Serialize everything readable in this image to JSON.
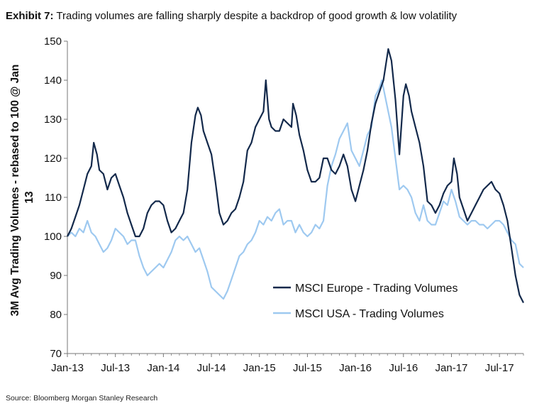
{
  "exhibit": {
    "label": "Exhibit 7:",
    "text": "Trading volumes are falling sharply despite a backdrop of good growth & low volatility"
  },
  "source": "Source: Bloomberg Morgan Stanley Research",
  "colors": {
    "europe": "#13294b",
    "usa": "#9ec9f0",
    "axis": "#777777"
  },
  "chart_data": {
    "type": "line",
    "title": "",
    "xlabel": "",
    "ylabel_lines": [
      "3M Avg Trading Volumes - rebased to 100 @ Jan",
      "13"
    ],
    "ylim": [
      70,
      150
    ],
    "yticks": [
      70,
      80,
      90,
      100,
      110,
      120,
      130,
      140,
      150
    ],
    "xlim": [
      0,
      57
    ],
    "xtick_labels": [
      "Jan-13",
      "Jul-13",
      "Jan-14",
      "Jul-14",
      "Jan-15",
      "Jul-15",
      "Jan-16",
      "Jul-16",
      "Jan-17",
      "Jul-17"
    ],
    "xtick_positions": [
      0,
      6,
      12,
      18,
      24,
      30,
      36,
      42,
      48,
      54
    ],
    "grid": false,
    "legend": "center-right",
    "series": [
      {
        "name": "MSCI Europe - Trading Volumes",
        "points": [
          [
            0,
            100
          ],
          [
            0.5,
            102
          ],
          [
            1,
            105
          ],
          [
            1.5,
            108
          ],
          [
            2,
            112
          ],
          [
            2.5,
            116
          ],
          [
            3,
            118
          ],
          [
            3.3,
            124
          ],
          [
            3.7,
            121
          ],
          [
            4,
            117
          ],
          [
            4.5,
            116
          ],
          [
            5,
            112
          ],
          [
            5.5,
            115
          ],
          [
            6,
            116
          ],
          [
            6.5,
            113
          ],
          [
            7,
            110
          ],
          [
            7.5,
            106
          ],
          [
            8,
            103
          ],
          [
            8.5,
            100
          ],
          [
            9,
            100
          ],
          [
            9.5,
            102
          ],
          [
            10,
            106
          ],
          [
            10.5,
            108
          ],
          [
            11,
            109
          ],
          [
            11.5,
            109
          ],
          [
            12,
            108
          ],
          [
            12.5,
            104
          ],
          [
            13,
            101
          ],
          [
            13.5,
            102
          ],
          [
            14,
            104
          ],
          [
            14.5,
            106
          ],
          [
            15,
            112
          ],
          [
            15.5,
            124
          ],
          [
            16,
            131
          ],
          [
            16.3,
            133
          ],
          [
            16.7,
            131
          ],
          [
            17,
            127
          ],
          [
            17.5,
            124
          ],
          [
            18,
            121
          ],
          [
            18.5,
            114
          ],
          [
            19,
            106
          ],
          [
            19.5,
            103
          ],
          [
            20,
            104
          ],
          [
            20.5,
            106
          ],
          [
            21,
            107
          ],
          [
            21.5,
            110
          ],
          [
            22,
            114
          ],
          [
            22.5,
            122
          ],
          [
            23,
            124
          ],
          [
            23.5,
            128
          ],
          [
            24,
            130
          ],
          [
            24.5,
            132
          ],
          [
            24.8,
            140
          ],
          [
            25.2,
            130
          ],
          [
            25.5,
            128
          ],
          [
            26,
            127
          ],
          [
            26.5,
            127
          ],
          [
            27,
            130
          ],
          [
            27.5,
            129
          ],
          [
            28,
            128
          ],
          [
            28.2,
            134
          ],
          [
            28.6,
            131
          ],
          [
            29,
            126
          ],
          [
            29.5,
            122
          ],
          [
            30,
            117
          ],
          [
            30.5,
            114
          ],
          [
            31,
            114
          ],
          [
            31.5,
            115
          ],
          [
            32,
            120
          ],
          [
            32.5,
            120
          ],
          [
            33,
            117
          ],
          [
            33.5,
            116
          ],
          [
            34,
            118
          ],
          [
            34.5,
            121
          ],
          [
            35,
            118
          ],
          [
            35.5,
            112
          ],
          [
            36,
            109
          ],
          [
            36.5,
            113
          ],
          [
            37,
            117
          ],
          [
            37.5,
            122
          ],
          [
            38,
            129
          ],
          [
            38.5,
            134
          ],
          [
            39,
            137
          ],
          [
            39.5,
            140
          ],
          [
            39.8,
            144
          ],
          [
            40.1,
            148
          ],
          [
            40.5,
            145
          ],
          [
            41,
            135
          ],
          [
            41.5,
            121
          ],
          [
            42,
            136
          ],
          [
            42.3,
            139
          ],
          [
            42.7,
            136
          ],
          [
            43,
            132
          ],
          [
            43.5,
            128
          ],
          [
            44,
            124
          ],
          [
            44.5,
            118
          ],
          [
            45,
            109
          ],
          [
            45.5,
            108
          ],
          [
            46,
            106
          ],
          [
            46.5,
            108
          ],
          [
            47,
            111
          ],
          [
            47.5,
            113
          ],
          [
            48,
            114
          ],
          [
            48.3,
            120
          ],
          [
            48.7,
            116
          ],
          [
            49,
            110
          ],
          [
            49.5,
            107
          ],
          [
            50,
            104
          ],
          [
            50.5,
            106
          ],
          [
            51,
            108
          ],
          [
            51.5,
            110
          ],
          [
            52,
            112
          ],
          [
            52.5,
            113
          ],
          [
            53,
            114
          ],
          [
            53.5,
            112
          ],
          [
            54,
            111
          ],
          [
            54.5,
            108
          ],
          [
            55,
            104
          ],
          [
            55.5,
            97
          ],
          [
            56,
            90
          ],
          [
            56.5,
            85
          ],
          [
            57,
            83
          ]
        ]
      },
      {
        "name": "MSCI USA - Trading Volumes",
        "points": [
          [
            0,
            100
          ],
          [
            0.5,
            101
          ],
          [
            1,
            100
          ],
          [
            1.5,
            102
          ],
          [
            2,
            101
          ],
          [
            2.5,
            104
          ],
          [
            3,
            101
          ],
          [
            3.5,
            100
          ],
          [
            4,
            98
          ],
          [
            4.5,
            96
          ],
          [
            5,
            97
          ],
          [
            5.5,
            99
          ],
          [
            6,
            102
          ],
          [
            6.5,
            101
          ],
          [
            7,
            100
          ],
          [
            7.5,
            98
          ],
          [
            8,
            99
          ],
          [
            8.5,
            99
          ],
          [
            9,
            95
          ],
          [
            9.5,
            92
          ],
          [
            10,
            90
          ],
          [
            10.5,
            91
          ],
          [
            11,
            92
          ],
          [
            11.5,
            93
          ],
          [
            12,
            92
          ],
          [
            12.5,
            94
          ],
          [
            13,
            96
          ],
          [
            13.5,
            99
          ],
          [
            14,
            100
          ],
          [
            14.5,
            99
          ],
          [
            15,
            100
          ],
          [
            15.5,
            98
          ],
          [
            16,
            96
          ],
          [
            16.5,
            97
          ],
          [
            17,
            94
          ],
          [
            17.5,
            91
          ],
          [
            18,
            87
          ],
          [
            18.5,
            86
          ],
          [
            19,
            85
          ],
          [
            19.5,
            84
          ],
          [
            20,
            86
          ],
          [
            20.5,
            89
          ],
          [
            21,
            92
          ],
          [
            21.5,
            95
          ],
          [
            22,
            96
          ],
          [
            22.5,
            98
          ],
          [
            23,
            99
          ],
          [
            23.5,
            101
          ],
          [
            24,
            104
          ],
          [
            24.5,
            103
          ],
          [
            25,
            105
          ],
          [
            25.5,
            104
          ],
          [
            26,
            106
          ],
          [
            26.5,
            107
          ],
          [
            27,
            103
          ],
          [
            27.5,
            104
          ],
          [
            28,
            104
          ],
          [
            28.5,
            101
          ],
          [
            29,
            103
          ],
          [
            29.5,
            101
          ],
          [
            30,
            100
          ],
          [
            30.5,
            101
          ],
          [
            31,
            103
          ],
          [
            31.5,
            102
          ],
          [
            32,
            104
          ],
          [
            32.5,
            113
          ],
          [
            33,
            118
          ],
          [
            33.5,
            121
          ],
          [
            34,
            125
          ],
          [
            34.5,
            127
          ],
          [
            35,
            129
          ],
          [
            35.5,
            122
          ],
          [
            36,
            120
          ],
          [
            36.5,
            118
          ],
          [
            37,
            122
          ],
          [
            37.5,
            126
          ],
          [
            38,
            128
          ],
          [
            38.5,
            136
          ],
          [
            39,
            138
          ],
          [
            39.3,
            140
          ],
          [
            39.7,
            136
          ],
          [
            40,
            133
          ],
          [
            40.5,
            128
          ],
          [
            41,
            120
          ],
          [
            41.5,
            112
          ],
          [
            42,
            113
          ],
          [
            42.5,
            112
          ],
          [
            43,
            110
          ],
          [
            43.5,
            106
          ],
          [
            44,
            104
          ],
          [
            44.5,
            108
          ],
          [
            45,
            104
          ],
          [
            45.5,
            103
          ],
          [
            46,
            103
          ],
          [
            46.5,
            106
          ],
          [
            47,
            109
          ],
          [
            47.5,
            108
          ],
          [
            48,
            112
          ],
          [
            48.5,
            109
          ],
          [
            49,
            105
          ],
          [
            49.5,
            104
          ],
          [
            50,
            103
          ],
          [
            50.5,
            104
          ],
          [
            51,
            104
          ],
          [
            51.5,
            103
          ],
          [
            52,
            103
          ],
          [
            52.5,
            102
          ],
          [
            53,
            103
          ],
          [
            53.5,
            104
          ],
          [
            54,
            104
          ],
          [
            54.5,
            103
          ],
          [
            55,
            101
          ],
          [
            55.5,
            99
          ],
          [
            56,
            98
          ],
          [
            56.5,
            93
          ],
          [
            57,
            92
          ]
        ]
      }
    ]
  }
}
